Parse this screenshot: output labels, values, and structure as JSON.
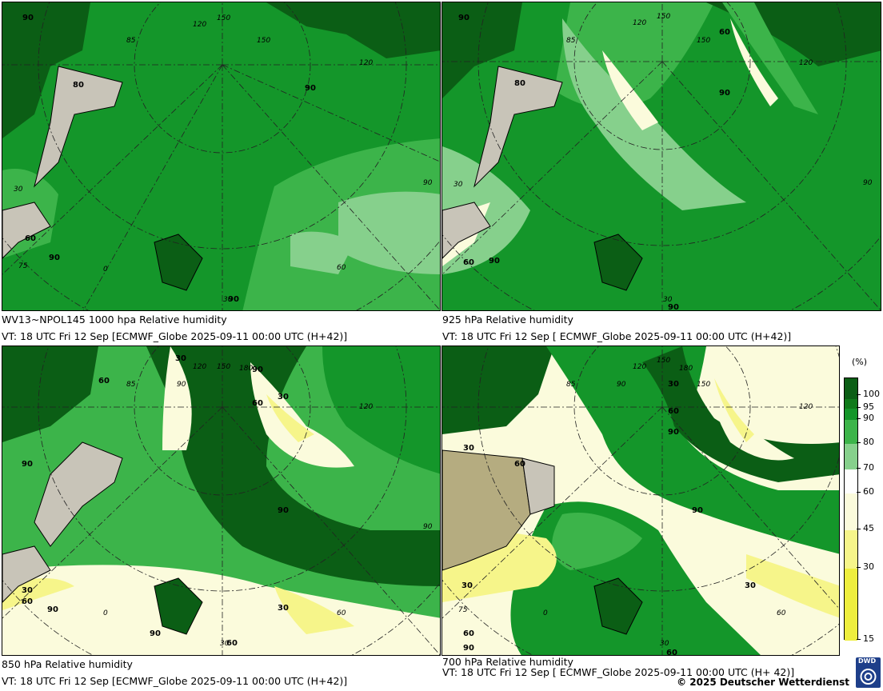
{
  "panels": [
    {
      "caption_line1": "WV13~NPOL145 1000 hpa Relative humidity",
      "caption_line2": "VT: 18 UTC Fri  12 Sep [ECMWF_Globe 2025-09-11 00:00 UTC  (H+42)]",
      "contour_labels": [
        "90",
        "80",
        "90",
        "60",
        "90",
        "90"
      ],
      "lon_labels": [
        "150",
        "120",
        "85",
        "150",
        "120",
        "90",
        "30",
        "75",
        "0",
        "60",
        "30"
      ]
    },
    {
      "caption_line1": "925 hPa Relative humidity",
      "caption_line2": "VT: 18 UTC Fri  12 Sep [ ECMWF_Globe 2025-09-11 00:00 UTC (H+42)]",
      "contour_labels": [
        "90",
        "80",
        "60",
        "90",
        "60",
        "90",
        "90"
      ],
      "lon_labels": [
        "150",
        "120",
        "85",
        "150",
        "120",
        "90",
        "30",
        "30"
      ]
    },
    {
      "caption_line1": "850 hPa  Relative humidity",
      "caption_line2": "VT: 18 UTC Fri  12 Sep [ECMWF_Globe 2025-09-11 00:00 UTC (H+42)]",
      "contour_labels": [
        "30",
        "90",
        "60",
        "60",
        "30",
        "90",
        "90",
        "30",
        "60",
        "90",
        "90",
        "30",
        "60"
      ],
      "lon_labels": [
        "120",
        "150",
        "180",
        "85",
        "90",
        "120",
        "90",
        "60",
        "0",
        "30"
      ]
    },
    {
      "caption_line1": "700 hPa Relative humidity",
      "caption_line2": "VT: 18 UTC Fri  12 Sep [ ECMWF_Globe 2025-09-11 00:00 UTC  (H+ 42)]",
      "contour_labels": [
        "30",
        "60",
        "90",
        "30",
        "60",
        "90",
        "30",
        "30",
        "60",
        "90",
        "60"
      ],
      "lon_labels": [
        "150",
        "180",
        "85",
        "120",
        "150",
        "120",
        "90",
        "60",
        "75",
        "0",
        "30"
      ]
    }
  ],
  "legend": {
    "unit": "(%)",
    "ticks": [
      "100",
      "95",
      "90",
      "80",
      "70",
      "60",
      "45",
      "30",
      "15"
    ],
    "levels": [
      {
        "value": "100",
        "color": "#0b5e15"
      },
      {
        "value": "95",
        "color": "#0f7a1a"
      },
      {
        "value": "90",
        "color": "#14962a"
      },
      {
        "value": "80",
        "color": "#3cb44a"
      },
      {
        "value": "70",
        "color": "#86d08c"
      },
      {
        "value": "60",
        "color": "#ffffff"
      },
      {
        "value": "45",
        "color": "#fbfbdc"
      },
      {
        "value": "30",
        "color": "#f6f58a"
      },
      {
        "value": "15",
        "color": "#eeee3e"
      }
    ]
  },
  "copyright": "© 2025 Deutscher Wetterdienst",
  "logo_text": "DWD"
}
